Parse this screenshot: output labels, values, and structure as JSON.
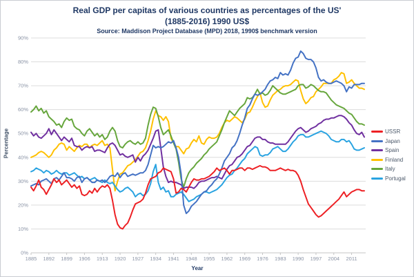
{
  "figure": {
    "title_line1": "Real GDP per capitas of various countries as percentages of the US'",
    "title_line2": "(1885-2016) 1990 US$",
    "subtitle": "Source: Maddison Project Database (MPD) 2018, 1990$ benchmark version"
  },
  "chart_data": {
    "type": "line",
    "title": "Real GDP per capitas of various countries as percentages of the US' (1885-2016) 1990 US$",
    "subtitle": "Source: Maddison Project Database (MPD) 2018, 1990$ benchmark version",
    "xlabel": "Year",
    "ylabel": "Percentage",
    "x_start": 1885,
    "x_end": 2016,
    "x_ticks": [
      1885,
      1892,
      1899,
      1906,
      1913,
      1920,
      1927,
      1934,
      1941,
      1948,
      1955,
      1962,
      1969,
      1976,
      1983,
      1990,
      1997,
      2004,
      2011
    ],
    "y_ticks_percent": [
      0,
      10,
      20,
      30,
      40,
      50,
      60,
      70,
      80,
      90
    ],
    "ylim": [
      0,
      90
    ],
    "grid": "horizontal",
    "legend_position": "right",
    "colors": {
      "grid": "#dcdcdc",
      "axis": "#c4c4c4",
      "tick_label": "#8a93a5",
      "title_text": "#1f3864"
    },
    "series": [
      {
        "name": "USSR",
        "color": "#ed2024",
        "values": [
          27.5,
          26,
          28,
          30.5,
          27.5,
          26.5,
          24.5,
          26.5,
          28.5,
          31,
          29.5,
          30.5,
          28.5,
          29.5,
          30.5,
          29,
          27.5,
          28.5,
          27,
          28,
          24.5,
          24,
          24.5,
          26,
          25,
          27,
          25.5,
          27,
          28,
          27.5,
          28.5,
          27,
          22,
          16,
          12,
          10.5,
          10,
          11.5,
          12.5,
          15,
          18,
          20.5,
          21,
          21.5,
          22.5,
          25,
          28.5,
          31,
          31.5,
          32,
          33.5,
          34,
          35.5,
          35,
          34.5,
          34,
          31,
          25,
          25.5,
          27,
          26.5,
          25.5,
          27.5,
          29.5,
          31,
          30.5,
          30.5,
          31,
          31,
          31.5,
          32,
          33,
          34,
          35.5,
          34.5,
          35,
          35.5,
          34.5,
          33,
          34.5,
          34.5,
          35,
          35.5,
          35.5,
          34.5,
          35.5,
          35.5,
          35,
          35.5,
          36,
          36.5,
          36,
          36,
          35.5,
          34.5,
          34.5,
          34.5,
          35,
          35.5,
          35,
          34.5,
          35,
          34.5,
          34.5,
          34,
          32.5,
          30,
          26.5,
          23.5,
          20.5,
          19,
          17.5,
          16,
          15,
          15.5,
          16.5,
          17.5,
          18.5,
          19.5,
          20.5,
          21.5,
          22.5,
          24,
          25.5,
          23.5,
          24.5,
          25.5,
          26,
          26.5,
          26.5,
          26,
          26
        ]
      },
      {
        "name": "Japan",
        "color": "#4472c4",
        "values": [
          28,
          28.5,
          29,
          28.5,
          30,
          30.5,
          31,
          30,
          29,
          31,
          31.5,
          30.5,
          32,
          33.5,
          31.5,
          31.5,
          31,
          30,
          31.5,
          32,
          29.5,
          31,
          31.5,
          30.5,
          29.5,
          29.5,
          30.5,
          30,
          30.5,
          29.5,
          30.5,
          32,
          32.5,
          32,
          33.5,
          31.5,
          33,
          33.5,
          32,
          32.5,
          33,
          32.5,
          33,
          33.5,
          33.5,
          34.5,
          37,
          41,
          45,
          44,
          44.5,
          44,
          44.5,
          45.5,
          46.5,
          46,
          47,
          44,
          40,
          33,
          20,
          16.5,
          17.5,
          19.5,
          20.5,
          21.5,
          23,
          24.5,
          25.5,
          26,
          27.5,
          28.5,
          30,
          31,
          33,
          35.5,
          38.5,
          40,
          41.5,
          44,
          45,
          47,
          50,
          53.5,
          56.5,
          60.5,
          62,
          64.5,
          66.5,
          66,
          66.5,
          67.5,
          68.5,
          70.5,
          72,
          72.5,
          73.5,
          73,
          75.5,
          74.5,
          75,
          74.5,
          76.5,
          79.5,
          81.5,
          82,
          84.5,
          83.5,
          81.5,
          81,
          81,
          80,
          77.5,
          73.5,
          72,
          72.5,
          71.5,
          71,
          71,
          71.5,
          72,
          71.5,
          71,
          70,
          67.5,
          69.5,
          69,
          70.5,
          70.5,
          70.5,
          71,
          71
        ]
      },
      {
        "name": "Spain",
        "color": "#7030a0",
        "values": [
          50.5,
          49,
          50,
          48.5,
          48,
          49,
          50,
          52,
          49.5,
          51.5,
          50,
          48.5,
          47,
          48.5,
          47.5,
          46.5,
          48,
          45,
          44.5,
          44.5,
          43,
          44,
          44.5,
          44,
          44.5,
          42.5,
          43,
          43,
          42.5,
          42,
          44,
          45.5,
          46,
          45,
          43,
          41,
          41.5,
          40.5,
          40,
          40.5,
          41,
          38,
          40,
          38.5,
          40.5,
          41.5,
          43,
          45.5,
          48,
          51,
          51.5,
          44,
          36,
          32,
          29.5,
          30,
          29.5,
          29.5,
          29,
          28.5,
          27,
          27.5,
          27.5,
          27.5,
          27,
          28,
          29.5,
          30,
          30,
          30.5,
          31,
          31.5,
          31.5,
          32,
          31.5,
          31,
          33,
          35,
          36.5,
          37,
          38.5,
          40,
          40.5,
          41.5,
          43,
          44.5,
          45,
          46.5,
          48,
          48.5,
          48.5,
          47.5,
          47.5,
          46.5,
          46,
          46,
          45.5,
          45.5,
          45.5,
          45.5,
          45.5,
          46.5,
          48,
          49.5,
          51,
          52,
          52.5,
          51.5,
          50.5,
          51,
          52,
          52.5,
          53,
          54,
          54.5,
          55.5,
          56,
          56,
          56.5,
          56.5,
          57,
          57.5,
          57.5,
          57,
          56,
          54.5,
          53.5,
          51.5,
          50,
          49.5,
          50.5,
          48.5
        ]
      },
      {
        "name": "Finland",
        "color": "#ffc000",
        "values": [
          40,
          40.5,
          41,
          42,
          42.5,
          42,
          41,
          40,
          41,
          43,
          44,
          45.5,
          46,
          45.5,
          43,
          44.5,
          43.5,
          42.5,
          44,
          45,
          44.5,
          45.5,
          45.5,
          44,
          45,
          45.5,
          45,
          46,
          47,
          45,
          45.5,
          44,
          35,
          26,
          30,
          33,
          33.5,
          35,
          36.5,
          37,
          38,
          39,
          40.5,
          42,
          42.5,
          44,
          47,
          51,
          56,
          59.5,
          57.5,
          57,
          55.5,
          57,
          55,
          48,
          46,
          44.5,
          44.5,
          43,
          41.5,
          43.5,
          44,
          46,
          47.5,
          46.5,
          49,
          46,
          45.5,
          47.5,
          48.5,
          48,
          48,
          48.5,
          50,
          52.5,
          54.5,
          55.5,
          55,
          56,
          57,
          56.5,
          55.5,
          54.5,
          56,
          58.5,
          59,
          61,
          63.5,
          65.5,
          67,
          63,
          61,
          61.5,
          64,
          66,
          67,
          68,
          68.5,
          69.5,
          70,
          70,
          70.5,
          71.5,
          72.5,
          72,
          68,
          64.5,
          62.5,
          63.5,
          65,
          65.5,
          67.5,
          68.5,
          69.5,
          71,
          71,
          71,
          71,
          72.5,
          73,
          74,
          75.5,
          75,
          71,
          71.5,
          72.5,
          71,
          70,
          69,
          69,
          68.5
        ]
      },
      {
        "name": "Italy",
        "color": "#66a63c",
        "values": [
          59,
          60,
          61.5,
          59.5,
          60.5,
          58.5,
          59.5,
          57,
          56,
          55,
          53.5,
          54,
          52.5,
          55,
          56.5,
          55.5,
          56,
          53,
          52,
          51.5,
          50,
          49,
          51,
          52,
          50.5,
          49,
          50,
          48.5,
          49.5,
          47.5,
          48.5,
          51,
          52.5,
          51,
          47,
          44.5,
          44,
          45.5,
          46.5,
          47,
          46,
          45.5,
          46.5,
          45.5,
          46,
          48,
          53.5,
          58,
          61,
          60.5,
          57,
          52.5,
          49.5,
          50.5,
          51.5,
          49,
          46,
          43.5,
          38,
          31,
          27.5,
          31,
          33.5,
          35,
          36,
          37.5,
          38.5,
          39.5,
          41,
          42,
          43.5,
          44.5,
          45.5,
          46.5,
          49,
          51.5,
          54.5,
          57,
          59.5,
          58.5,
          57.5,
          59,
          60.5,
          61.5,
          62.5,
          65,
          64.5,
          65,
          66.5,
          68.5,
          66.5,
          67,
          66,
          66.5,
          68,
          70,
          69,
          68,
          67,
          66.5,
          66.5,
          67,
          67.5,
          68,
          68.5,
          70,
          70.5,
          70.5,
          69,
          69.5,
          70.5,
          70,
          69,
          68,
          67.5,
          67.5,
          67,
          65.5,
          64,
          63,
          62,
          61.5,
          61,
          60.5,
          59.5,
          58.5,
          58,
          56.5,
          55,
          54,
          54,
          53.5
        ]
      },
      {
        "name": "Portugal",
        "color": "#29a3e1",
        "values": [
          34,
          34.5,
          35.5,
          35,
          34.5,
          33.5,
          34.5,
          34,
          33,
          33.5,
          34.5,
          33.5,
          33,
          33.5,
          33.5,
          32.5,
          33,
          33.5,
          32.5,
          31.5,
          32,
          31,
          31.5,
          30.5,
          31,
          31.5,
          30.5,
          30,
          29.5,
          30.5,
          29.5,
          29,
          29.5,
          28,
          26.5,
          25.5,
          26,
          27,
          27.5,
          26.5,
          25.5,
          23.5,
          24.5,
          25,
          24,
          24.5,
          26,
          29,
          34,
          37,
          29.5,
          26.5,
          27.5,
          25.5,
          26,
          23.5,
          23.5,
          24.5,
          25,
          25.5,
          24.5,
          23,
          21.5,
          22,
          22.5,
          23.5,
          24,
          24.5,
          25.5,
          25.5,
          25,
          25.5,
          26,
          26.5,
          27.5,
          28.5,
          30,
          31.5,
          32.5,
          33,
          34.5,
          35.5,
          37,
          38.5,
          39.5,
          41.5,
          42.5,
          43.5,
          44.5,
          44,
          41,
          40.5,
          41,
          41,
          42,
          43.5,
          44,
          44.5,
          43.5,
          42.5,
          42.5,
          43.5,
          45,
          46.5,
          47.5,
          49,
          49.5,
          49.5,
          48.5,
          48.5,
          49,
          49.5,
          50,
          50.5,
          51,
          50.5,
          50,
          49,
          47.5,
          47,
          46.5,
          46.5,
          47.5,
          47.5,
          46.5,
          47,
          45.5,
          43.5,
          43,
          43,
          43.5,
          44
        ]
      }
    ]
  }
}
